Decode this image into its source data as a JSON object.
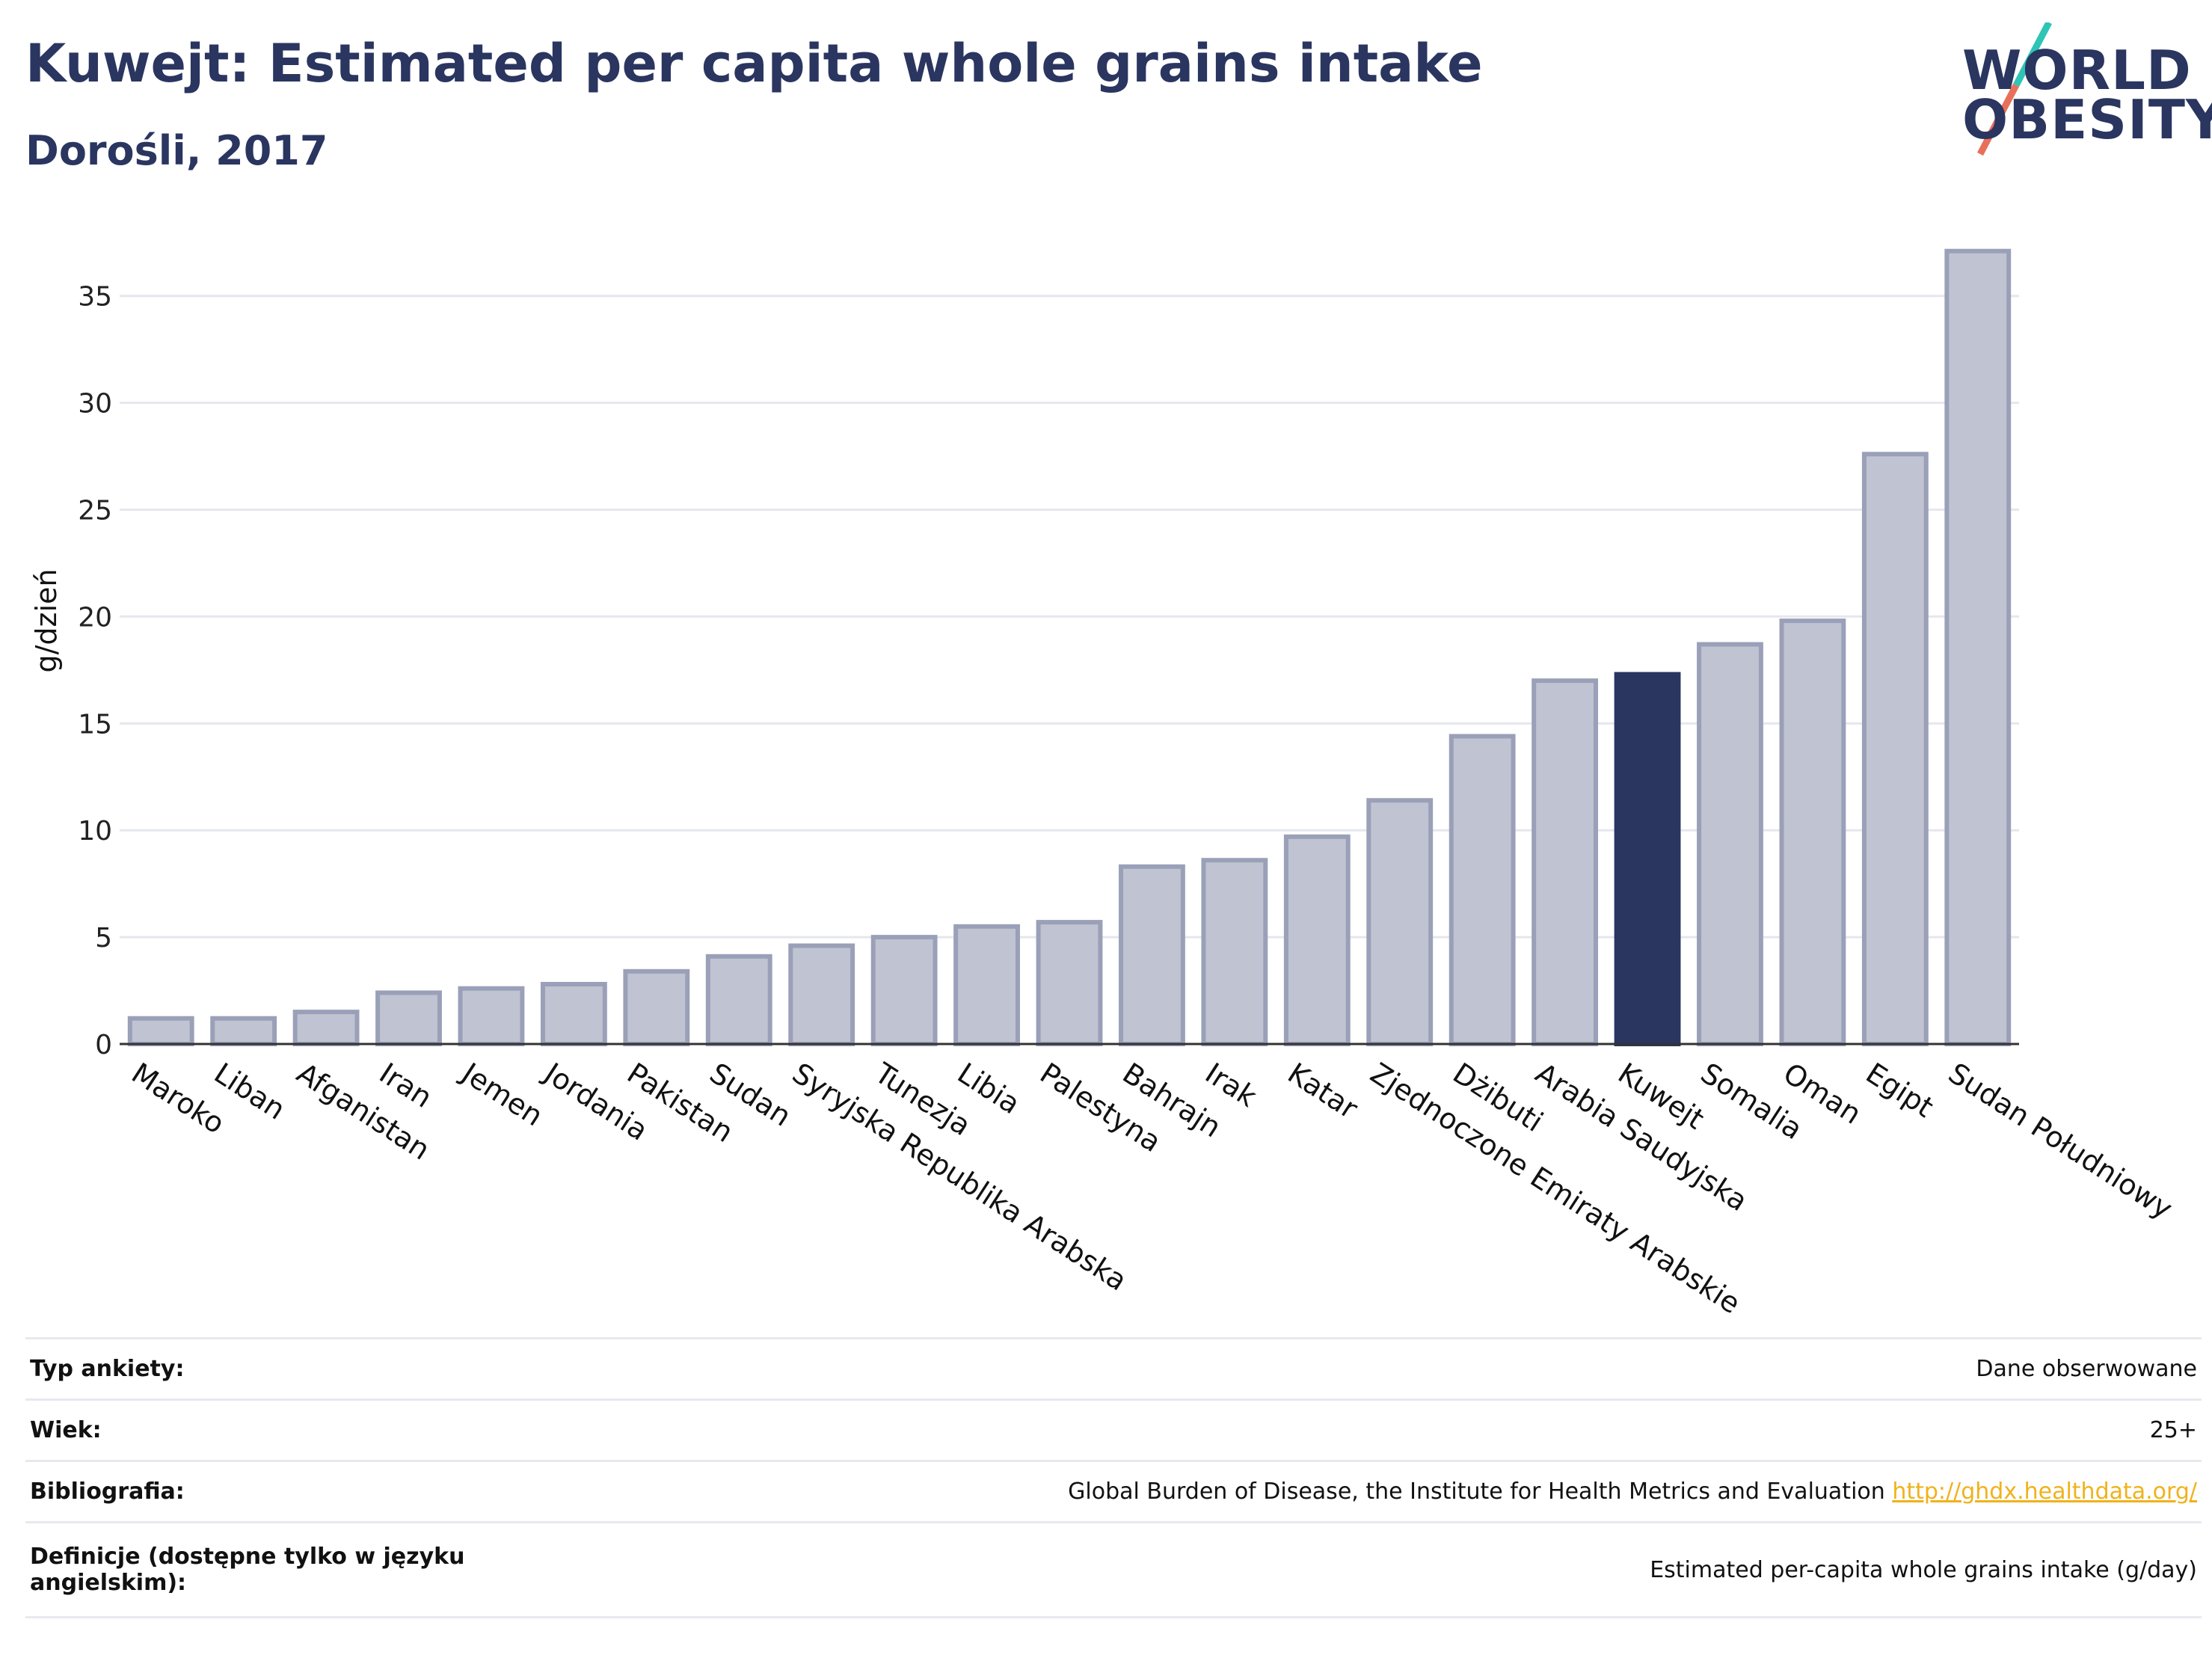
{
  "header": {
    "title": "Kuwejt: Estimated per capita whole grains intake",
    "subtitle": "Dorośli, 2017"
  },
  "logo": {
    "line1": "WORLD",
    "line2": "OBESITY",
    "colors": {
      "text": "#2a3560",
      "slash_teal": "#2ec4b6",
      "slash_coral": "#e8705a"
    }
  },
  "colors": {
    "bar_default": "#c0c3d1",
    "bar_default_border": "#9aa0b8",
    "bar_highlight": "#2a3560",
    "gridline": "#e6e7ee",
    "axis": "#333333",
    "link": "#f0b21c"
  },
  "chart_data": {
    "type": "bar",
    "ylabel": "g/dzień",
    "ylim": [
      0,
      37.3
    ],
    "yticks": [
      0,
      5,
      10,
      15,
      20,
      25,
      30,
      35
    ],
    "grid": true,
    "highlight": "Kuwejt",
    "categories": [
      "Maroko",
      "Liban",
      "Afganistan",
      "Iran",
      "Jemen",
      "Jordania",
      "Pakistan",
      "Sudan",
      "Syryjska Republika Arabska",
      "Tunezja",
      "Libia",
      "Palestyna",
      "Bahrajn",
      "Irak",
      "Katar",
      "Zjednoczone Emiraty Arabskie",
      "Dżibuti",
      "Arabia Saudyjska",
      "Kuwejt",
      "Somalia",
      "Oman",
      "Egipt",
      "Sudan Południowy"
    ],
    "values": [
      1.2,
      1.2,
      1.5,
      2.4,
      2.6,
      2.8,
      3.4,
      4.1,
      4.6,
      5.0,
      5.5,
      5.7,
      8.3,
      8.6,
      9.7,
      11.4,
      14.4,
      17.0,
      17.3,
      18.7,
      19.8,
      27.6,
      37.1
    ]
  },
  "info": {
    "survey_type_label": "Typ ankiety:",
    "survey_type_value": "Dane obserwowane",
    "age_label": "Wiek:",
    "age_value": "25+",
    "bibliography_label": "Bibliografia:",
    "bibliography_text": "Global Burden of Disease, the Institute for Health Metrics and Evaluation ",
    "bibliography_link": "http://ghdx.healthdata.org/",
    "definitions_label_line1": "Definicje (dostępne tylko w języku",
    "definitions_label_line2": "angielskim):",
    "definitions_value": "Estimated per-capita whole grains intake (g/day)"
  }
}
